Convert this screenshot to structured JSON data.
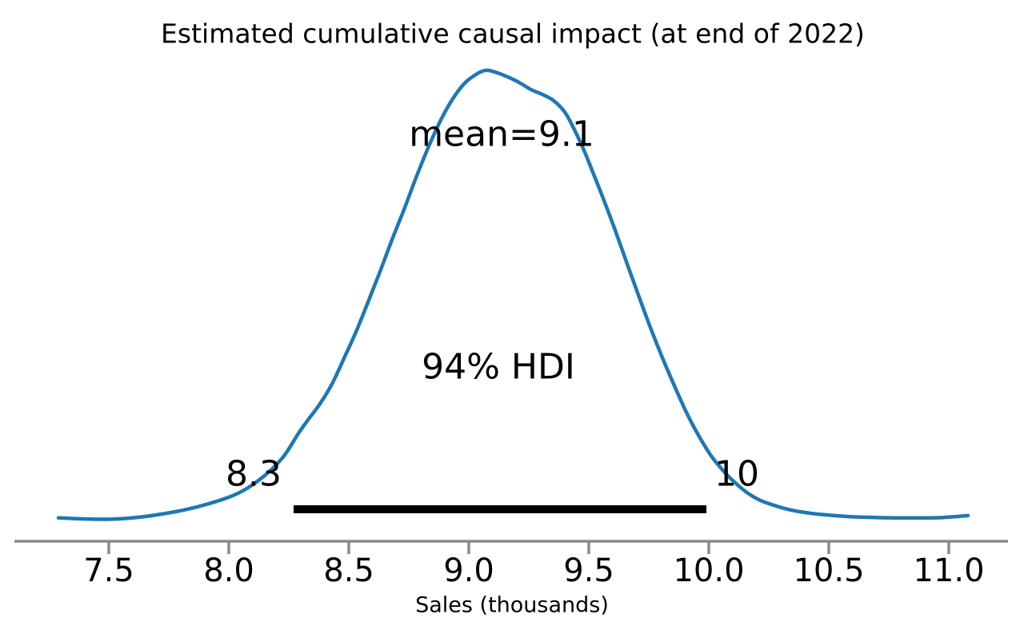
{
  "chart_data": {
    "type": "line",
    "subtype": "kde-posterior-density",
    "title": "Estimated cumulative causal impact (at end of 2022)",
    "xlabel": "Sales (thousands)",
    "ylabel": "",
    "xlim": [
      7.2,
      11.15
    ],
    "x_ticks": [
      7.5,
      8.0,
      8.5,
      9.0,
      9.5,
      10.0,
      10.5,
      11.0
    ],
    "x_tick_labels": [
      "7.5",
      "8.0",
      "8.5",
      "9.0",
      "9.5",
      "10.0",
      "10.5",
      "11.0"
    ],
    "mean": 9.1,
    "mean_label": "mean=9.1",
    "hdi": {
      "prob": 0.94,
      "label": "94% HDI",
      "lower": 8.27,
      "upper": 9.99,
      "lower_label": "8.3",
      "upper_label": "10"
    },
    "line_color": "#1f77b4",
    "hdi_bar_color": "#000000",
    "axis_color": "#8a8a8a",
    "grid": false,
    "legend": false,
    "density": [
      [
        7.29,
        0.004
      ],
      [
        7.38,
        0.002
      ],
      [
        7.51,
        0.001
      ],
      [
        7.65,
        0.007
      ],
      [
        7.78,
        0.018
      ],
      [
        7.88,
        0.03
      ],
      [
        8.0,
        0.05
      ],
      [
        8.08,
        0.071
      ],
      [
        8.16,
        0.103
      ],
      [
        8.23,
        0.142
      ],
      [
        8.29,
        0.192
      ],
      [
        8.33,
        0.222
      ],
      [
        8.38,
        0.258
      ],
      [
        8.43,
        0.302
      ],
      [
        8.48,
        0.359
      ],
      [
        8.53,
        0.418
      ],
      [
        8.58,
        0.484
      ],
      [
        8.63,
        0.552
      ],
      [
        8.68,
        0.623
      ],
      [
        8.73,
        0.69
      ],
      [
        8.78,
        0.761
      ],
      [
        8.83,
        0.827
      ],
      [
        8.88,
        0.886
      ],
      [
        8.93,
        0.934
      ],
      [
        8.98,
        0.97
      ],
      [
        9.03,
        0.991
      ],
      [
        9.07,
        1.0
      ],
      [
        9.11,
        0.996
      ],
      [
        9.16,
        0.986
      ],
      [
        9.21,
        0.973
      ],
      [
        9.26,
        0.957
      ],
      [
        9.3,
        0.948
      ],
      [
        9.35,
        0.934
      ],
      [
        9.4,
        0.907
      ],
      [
        9.44,
        0.868
      ],
      [
        9.48,
        0.822
      ],
      [
        9.52,
        0.769
      ],
      [
        9.56,
        0.715
      ],
      [
        9.61,
        0.644
      ],
      [
        9.66,
        0.569
      ],
      [
        9.71,
        0.495
      ],
      [
        9.76,
        0.423
      ],
      [
        9.81,
        0.356
      ],
      [
        9.86,
        0.294
      ],
      [
        9.91,
        0.235
      ],
      [
        9.96,
        0.185
      ],
      [
        10.01,
        0.142
      ],
      [
        10.06,
        0.109
      ],
      [
        10.11,
        0.082
      ],
      [
        10.16,
        0.06
      ],
      [
        10.21,
        0.044
      ],
      [
        10.26,
        0.034
      ],
      [
        10.33,
        0.023
      ],
      [
        10.4,
        0.016
      ],
      [
        10.48,
        0.011
      ],
      [
        10.58,
        0.007
      ],
      [
        10.69,
        0.005
      ],
      [
        10.79,
        0.004
      ],
      [
        10.89,
        0.004
      ],
      [
        10.98,
        0.005
      ],
      [
        11.08,
        0.009
      ]
    ]
  }
}
